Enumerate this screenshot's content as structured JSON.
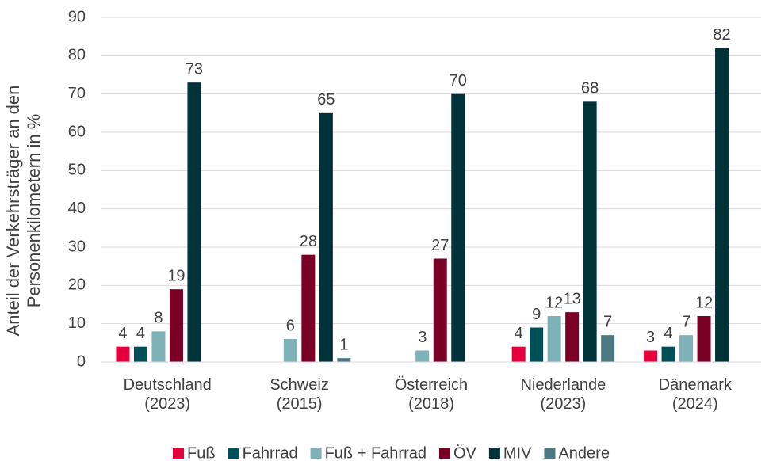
{
  "chart_data": {
    "type": "bar",
    "y_label": "Anteil der Verkehrsträger an den\nPersonenkilometern in %",
    "categories": [
      "Deutschland\n(2023)",
      "Schweiz\n(2015)",
      "Österreich\n(2018)",
      "Niederlande\n(2023)",
      "Dänemark\n(2024)"
    ],
    "series": [
      {
        "name": "Fuß",
        "color": "#e4003a",
        "values": [
          4,
          null,
          null,
          4,
          3
        ]
      },
      {
        "name": "Fahrrad",
        "color": "#004f57",
        "values": [
          4,
          null,
          null,
          9,
          4
        ]
      },
      {
        "name": "Fuß + Fahrrad",
        "color": "#7fb1b8",
        "values": [
          8,
          6,
          3,
          12,
          7
        ]
      },
      {
        "name": "ÖV",
        "color": "#7a0025",
        "values": [
          19,
          28,
          27,
          13,
          12
        ]
      },
      {
        "name": "MIV",
        "color": "#00323a",
        "values": [
          73,
          65,
          70,
          68,
          82
        ]
      },
      {
        "name": "Andere",
        "color": "#4d7a82",
        "values": [
          null,
          1,
          null,
          7,
          null
        ]
      }
    ],
    "ylim": [
      0,
      90
    ],
    "yticks": [
      0,
      10,
      20,
      30,
      40,
      50,
      60,
      70,
      80,
      90
    ],
    "grid": true,
    "legend": "bottom"
  }
}
